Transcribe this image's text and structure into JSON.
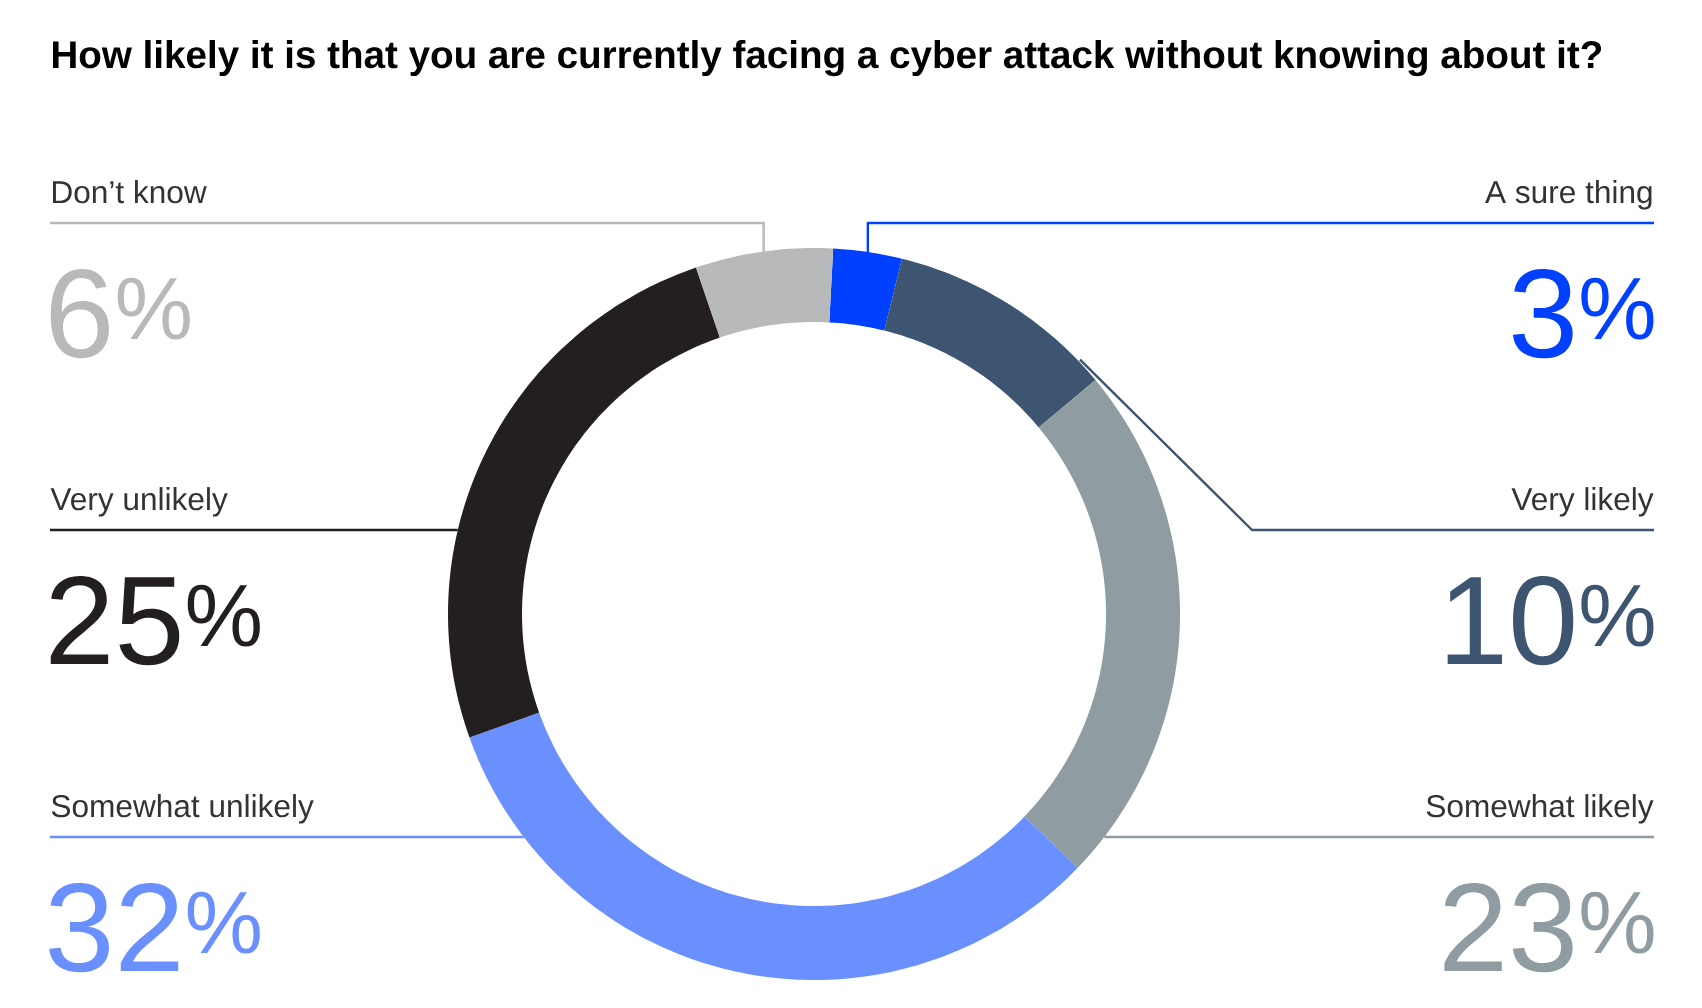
{
  "chart_data": {
    "type": "donut",
    "title": "How likely it is that you are currently facing a cyber attack without knowing about it?",
    "categories": [
      "A sure thing",
      "Very likely",
      "Somewhat likely",
      "Somewhat unlikely",
      "Very unlikely",
      "Don’t know"
    ],
    "values": [
      3,
      10,
      23,
      32,
      25,
      6
    ],
    "colors": [
      "#0040ff",
      "#3d5570",
      "#8f9ca2",
      "#6a8fff",
      "#231f20",
      "#b8b9bb"
    ],
    "value_labels": [
      "3$^{%}$",
      "10$^{%}$",
      "23$^{%}$",
      "32$^{%}$",
      "25$^{%}$",
      "6$^{%}$"
    ]
  }
}
